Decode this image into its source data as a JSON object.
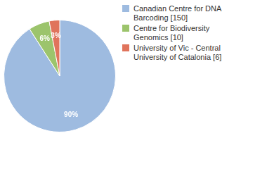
{
  "chart_data": {
    "type": "pie",
    "categories": [
      "Canadian Centre for DNA Barcoding [150]",
      "Centre for Biodiversity Genomics [10]",
      "University of Vic - Central University of Catalonia [6]"
    ],
    "values": [
      90,
      6,
      3
    ],
    "value_labels": [
      "90%",
      "6%",
      "3%"
    ],
    "colors": [
      "#9ebbe0",
      "#9cc46c",
      "#e0745c"
    ],
    "data_labels": true,
    "legend": "right"
  }
}
